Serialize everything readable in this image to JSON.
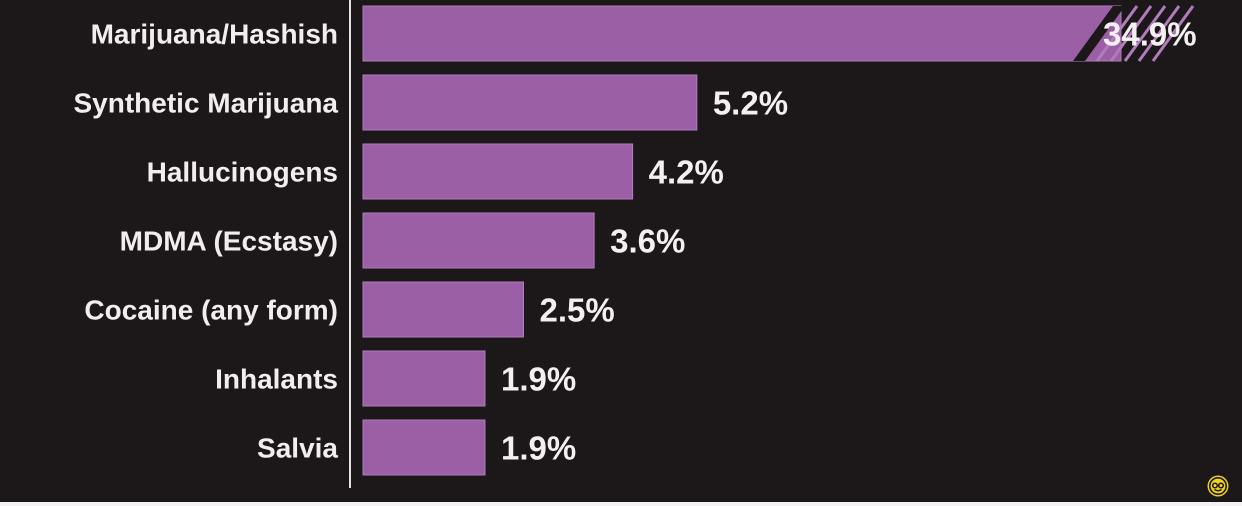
{
  "chart_data": {
    "type": "bar",
    "orientation": "horizontal",
    "categories": [
      "Marijuana/Hashish",
      "Synthetic Marijuana",
      "Hallucinogens",
      "MDMA (Ecstasy)",
      "Cocaine (any form)",
      "Inhalants",
      "Salvia"
    ],
    "values": [
      34.9,
      5.2,
      4.2,
      3.6,
      2.5,
      1.9,
      1.9
    ],
    "value_labels": [
      "34.9%",
      "5.2%",
      "4.2%",
      "3.6%",
      "2.5%",
      "1.9%",
      "1.9%"
    ],
    "axis_break_on_first_bar": true,
    "title": "",
    "xlabel": "",
    "ylabel": "",
    "grid": false,
    "legend": "none"
  },
  "colors": {
    "background": "#1c1719",
    "bar": "#9b5fa6",
    "bar_edge": "#b07cba",
    "text": "#f2eef0",
    "axis": "#e6e1e4",
    "watermark": "#f0d21c"
  },
  "icons": {
    "watermark": "smile-logo-icon"
  }
}
